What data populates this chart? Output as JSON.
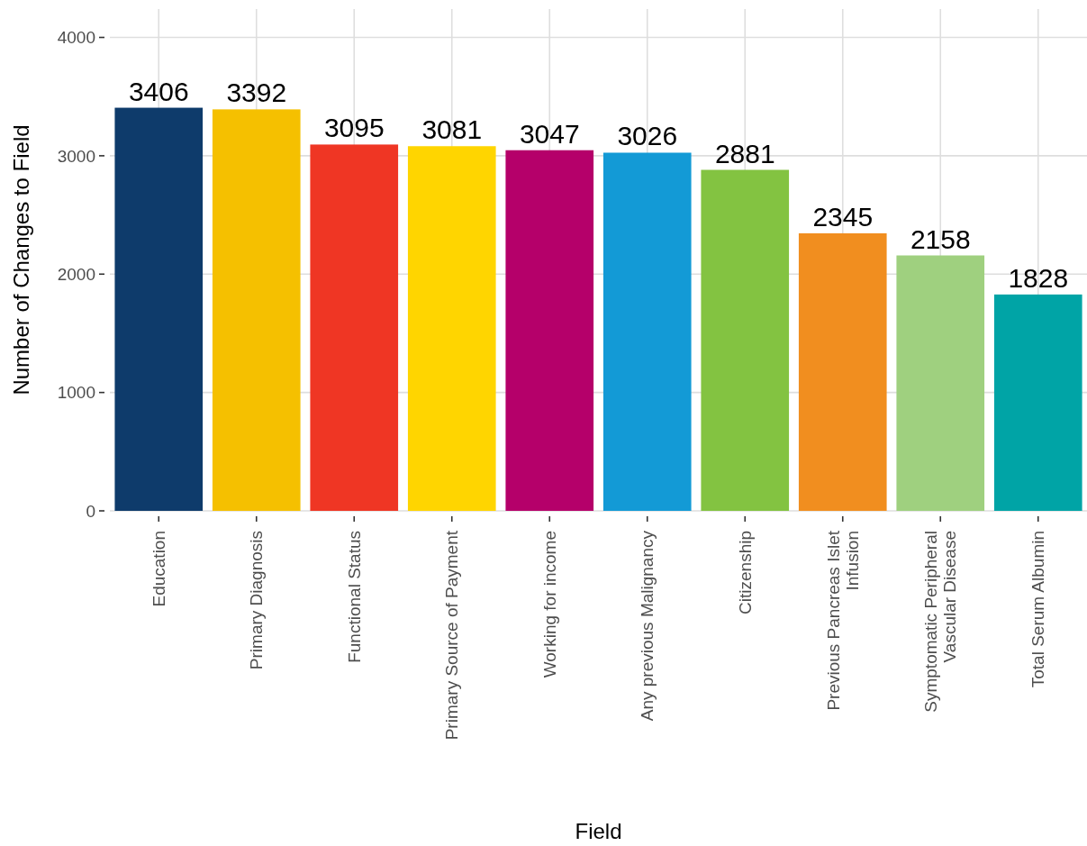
{
  "chart_data": {
    "type": "bar",
    "xlabel": "Field",
    "ylabel": "Number of Changes to Field",
    "categories": [
      "Education",
      "Primary Diagnosis",
      "Functional Status",
      "Primary Source of Payment",
      "Working for income",
      "Any previous Malignancy",
      "Citizenship",
      "Previous Pancreas Islet\nInfusion",
      "Symptomatic Peripheral\nVascular Disease",
      "Total Serum Albumin"
    ],
    "values": [
      3406,
      3392,
      3095,
      3081,
      3047,
      3026,
      2881,
      2345,
      2158,
      1828
    ],
    "colors": [
      "#0e3b6b",
      "#f5c000",
      "#ef3624",
      "#ffd500",
      "#b5006a",
      "#139ad6",
      "#83c341",
      "#f18e1f",
      "#9fd07f",
      "#00a4a6"
    ],
    "data_labels": true,
    "ylim": [
      0,
      4240
    ],
    "yticks": [
      0,
      1000,
      2000,
      3000,
      4000
    ],
    "grid": true
  }
}
